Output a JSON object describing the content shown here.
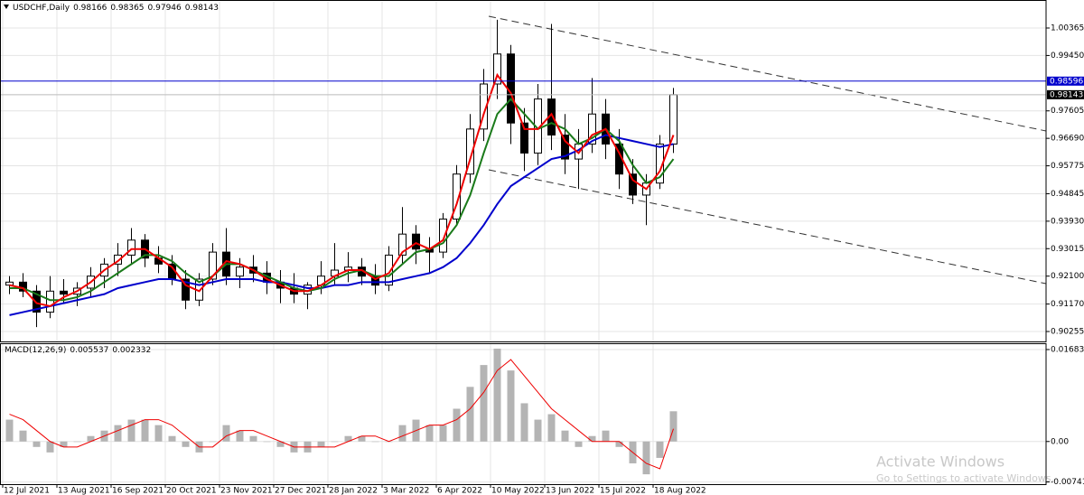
{
  "chart_data": [
    {
      "type": "candlestick",
      "title": "USDCHF,Daily",
      "ohlc_header": [
        0.98166,
        0.98365,
        0.97946,
        0.98143
      ],
      "categories": [
        "12 Jul 2021",
        null,
        null,
        null,
        "13 Aug 2021",
        null,
        null,
        null,
        "16 Sep 2021",
        null,
        null,
        null,
        "20 Oct 2021",
        null,
        null,
        null,
        "23 Nov 2021",
        null,
        null,
        null,
        "27 Dec 2021",
        null,
        null,
        null,
        "28 Jan 2022",
        null,
        null,
        null,
        "3 Mar 2022",
        null,
        null,
        null,
        "6 Apr 2022",
        null,
        null,
        null,
        "10 May 2022",
        null,
        null,
        null,
        "13 Jun 2022",
        null,
        null,
        null,
        "15 Jul 2022",
        null,
        null,
        null,
        "18 Aug 2022",
        null
      ],
      "open": [
        0.918,
        0.919,
        0.916,
        0.909,
        0.916,
        0.915,
        0.917,
        0.921,
        0.925,
        0.928,
        0.933,
        0.927,
        0.925,
        0.92,
        0.913,
        0.92,
        0.929,
        0.921,
        0.924,
        0.922,
        0.919,
        0.917,
        0.915,
        0.918,
        0.921,
        0.923,
        0.924,
        0.921,
        0.918,
        0.928,
        0.935,
        0.93,
        0.929,
        0.94,
        0.955,
        0.97,
        0.985,
        0.995,
        0.972,
        0.962,
        0.98,
        0.968,
        0.96,
        0.965,
        0.975,
        0.965,
        0.955,
        0.948,
        0.952,
        0.965
      ],
      "high": [
        0.921,
        0.922,
        0.918,
        0.921,
        0.92,
        0.919,
        0.924,
        0.927,
        0.932,
        0.937,
        0.935,
        0.931,
        0.928,
        0.923,
        0.922,
        0.932,
        0.937,
        0.927,
        0.928,
        0.926,
        0.923,
        0.922,
        0.919,
        0.926,
        0.932,
        0.929,
        0.927,
        0.925,
        0.931,
        0.944,
        0.938,
        0.934,
        0.942,
        0.958,
        0.975,
        0.99,
        1.0064,
        0.998,
        0.977,
        0.985,
        1.005,
        0.975,
        0.97,
        0.987,
        0.98,
        0.97,
        0.96,
        0.955,
        0.968,
        0.9837
      ],
      "low": [
        0.915,
        0.914,
        0.904,
        0.907,
        0.912,
        0.911,
        0.914,
        0.917,
        0.921,
        0.925,
        0.924,
        0.922,
        0.918,
        0.91,
        0.911,
        0.918,
        0.918,
        0.917,
        0.919,
        0.915,
        0.912,
        0.912,
        0.91,
        0.915,
        0.918,
        0.919,
        0.918,
        0.915,
        0.916,
        0.925,
        0.925,
        0.922,
        0.927,
        0.938,
        0.952,
        0.966,
        0.98,
        0.965,
        0.956,
        0.958,
        0.963,
        0.955,
        0.95,
        0.962,
        0.96,
        0.95,
        0.945,
        0.938,
        0.95,
        0.962
      ],
      "close": [
        0.919,
        0.916,
        0.909,
        0.916,
        0.915,
        0.917,
        0.921,
        0.925,
        0.928,
        0.933,
        0.927,
        0.925,
        0.92,
        0.913,
        0.92,
        0.929,
        0.921,
        0.924,
        0.922,
        0.919,
        0.917,
        0.915,
        0.918,
        0.921,
        0.923,
        0.924,
        0.921,
        0.918,
        0.928,
        0.935,
        0.93,
        0.929,
        0.94,
        0.955,
        0.97,
        0.985,
        0.995,
        0.972,
        0.962,
        0.98,
        0.968,
        0.96,
        0.965,
        0.975,
        0.965,
        0.955,
        0.948,
        0.952,
        0.965,
        0.98143
      ],
      "lines": [
        {
          "color": "#0000cc",
          "values": [
            0.908,
            0.909,
            0.91,
            0.911,
            0.912,
            0.913,
            0.914,
            0.915,
            0.917,
            0.918,
            0.919,
            0.92,
            0.92,
            0.919,
            0.918,
            0.919,
            0.92,
            0.92,
            0.92,
            0.919,
            0.919,
            0.918,
            0.917,
            0.917,
            0.918,
            0.918,
            0.919,
            0.919,
            0.919,
            0.92,
            0.921,
            0.922,
            0.924,
            0.927,
            0.932,
            0.938,
            0.945,
            0.951,
            0.954,
            0.957,
            0.96,
            0.961,
            0.963,
            0.966,
            0.968,
            0.967,
            0.966,
            0.965,
            0.964,
            0.965
          ]
        },
        {
          "color": "#1a7a1a",
          "values": [
            0.917,
            0.917,
            0.915,
            0.913,
            0.913,
            0.914,
            0.916,
            0.919,
            0.922,
            0.925,
            0.928,
            0.928,
            0.926,
            0.922,
            0.919,
            0.921,
            0.925,
            0.925,
            0.923,
            0.921,
            0.919,
            0.917,
            0.916,
            0.917,
            0.92,
            0.922,
            0.923,
            0.921,
            0.921,
            0.925,
            0.929,
            0.93,
            0.932,
            0.938,
            0.948,
            0.962,
            0.975,
            0.98,
            0.975,
            0.97,
            0.972,
            0.97,
            0.965,
            0.967,
            0.97,
            0.966,
            0.958,
            0.952,
            0.954,
            0.96
          ]
        },
        {
          "color": "#ee0000",
          "values": [
            0.918,
            0.917,
            0.912,
            0.911,
            0.914,
            0.916,
            0.919,
            0.923,
            0.926,
            0.93,
            0.93,
            0.927,
            0.924,
            0.918,
            0.916,
            0.921,
            0.926,
            0.925,
            0.923,
            0.92,
            0.918,
            0.916,
            0.916,
            0.918,
            0.921,
            0.923,
            0.923,
            0.92,
            0.922,
            0.929,
            0.932,
            0.93,
            0.933,
            0.945,
            0.96,
            0.975,
            0.988,
            0.982,
            0.97,
            0.97,
            0.975,
            0.966,
            0.962,
            0.968,
            0.97,
            0.962,
            0.953,
            0.95,
            0.956,
            0.968
          ]
        }
      ],
      "level": 0.98596,
      "level_color": "#0000cc",
      "last_price": 0.98143,
      "ylim": [
        0.89924,
        1.01238
      ],
      "yticks": [
        1.00365,
        {
          "value": 0.9945,
          "label": "0.99450"
        },
        0.97605,
        {
          "value": 0.9669,
          "label": "0.96690"
        },
        0.95775,
        0.94845,
        {
          "value": 0.9393,
          "label": "0.93930"
        },
        0.93015,
        {
          "value": 0.921,
          "label": "0.92100"
        },
        {
          "value": 0.9117,
          "label": "0.91170"
        },
        0.90255
      ],
      "grid": true
    },
    {
      "type": "macd",
      "title": "MACD(12,26,9)",
      "indicator_values": [
        0.005537,
        0.002332
      ],
      "histogram": {
        "color": "#b4b4b4",
        "values": [
          0.004,
          0.002,
          -0.001,
          -0.002,
          -0.001,
          0.0,
          0.001,
          0.002,
          0.003,
          0.004,
          0.004,
          0.003,
          0.001,
          -0.001,
          -0.002,
          0.0,
          0.003,
          0.002,
          0.001,
          0.0,
          -0.001,
          -0.002,
          -0.002,
          -0.001,
          0.0,
          0.001,
          0.001,
          0.0,
          0.0,
          0.003,
          0.004,
          0.003,
          0.003,
          0.006,
          0.01,
          0.014,
          0.017,
          0.013,
          0.007,
          0.004,
          0.005,
          0.002,
          -0.001,
          0.001,
          0.002,
          -0.001,
          -0.004,
          -0.006,
          -0.003,
          0.005537
        ]
      },
      "signal": {
        "color": "#ee0000",
        "values": [
          0.005,
          0.004,
          0.002,
          0.0,
          -0.001,
          -0.001,
          0.0,
          0.001,
          0.002,
          0.003,
          0.004,
          0.004,
          0.003,
          0.001,
          -0.001,
          -0.001,
          0.001,
          0.002,
          0.002,
          0.001,
          0.0,
          -0.001,
          -0.001,
          -0.001,
          -0.001,
          0.0,
          0.001,
          0.001,
          0.0,
          0.001,
          0.002,
          0.003,
          0.003,
          0.004,
          0.006,
          0.009,
          0.013,
          0.015,
          0.012,
          0.009,
          0.006,
          0.004,
          0.002,
          0.0,
          0.0,
          0.0,
          -0.002,
          -0.004,
          -0.005,
          0.002332
        ]
      },
      "ylim": [
        -0.00814,
        0.01782
      ],
      "yticks": [
        0.016833,
        {
          "value": 0,
          "label": "0.00"
        },
        -0.007411
      ],
      "grid": true
    }
  ],
  "watermark": {
    "title": "Activate Windows",
    "subtitle": "Go to Settings to activate Windows."
  }
}
